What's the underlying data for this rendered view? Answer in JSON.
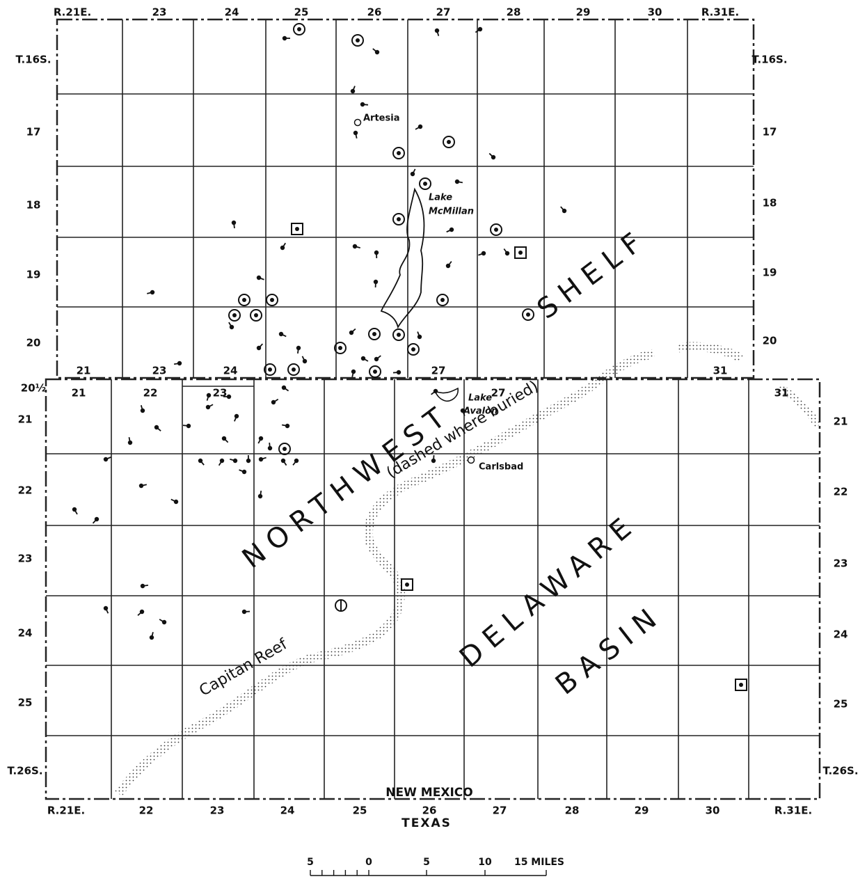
{
  "top_range_labels": [
    "R.21E.",
    "23",
    "24",
    "25",
    "26",
    "27",
    "28",
    "29",
    "30",
    "R.31E."
  ],
  "left_township_labels_upper": [
    "T.16S.",
    "17",
    "18",
    "19",
    "20",
    "20½"
  ],
  "right_township_labels_upper": [
    "T.16S.",
    "17",
    "18",
    "19",
    "20"
  ],
  "lower_top_range_labels": [
    "21",
    "23",
    "24",
    "27",
    "31"
  ],
  "lower_inner_range_labels": [
    "21",
    "22",
    "23",
    "27",
    "31"
  ],
  "left_township_labels_lower": [
    "21",
    "22",
    "23",
    "24",
    "25",
    "T.26S."
  ],
  "right_township_labels_lower": [
    "21",
    "22",
    "23",
    "24",
    "25",
    "T.26S."
  ],
  "bottom_range_labels": [
    "R.21E.",
    "22",
    "23",
    "24",
    "25",
    "26",
    "27",
    "28",
    "29",
    "30",
    "R.31E."
  ],
  "state_labels": {
    "north": "NEW MEXICO",
    "south": "TEXAS"
  },
  "places": {
    "artesia": "Artesia",
    "lake_mcmillan": [
      "Lake",
      "McMillan"
    ],
    "lake_avalon": [
      "Lake",
      "Avalon"
    ],
    "carlsbad": "Carlsbad"
  },
  "regions": {
    "northwest": "NORTHWEST",
    "shelf": "SHELF",
    "delaware": "DELAWARE",
    "basin": "BASIN",
    "reef_note": "(dashed where buried)",
    "reef": "Capitan Reef"
  },
  "scale_bar": {
    "labels": [
      "5",
      "0",
      "5",
      "10",
      "15 MILES"
    ]
  }
}
